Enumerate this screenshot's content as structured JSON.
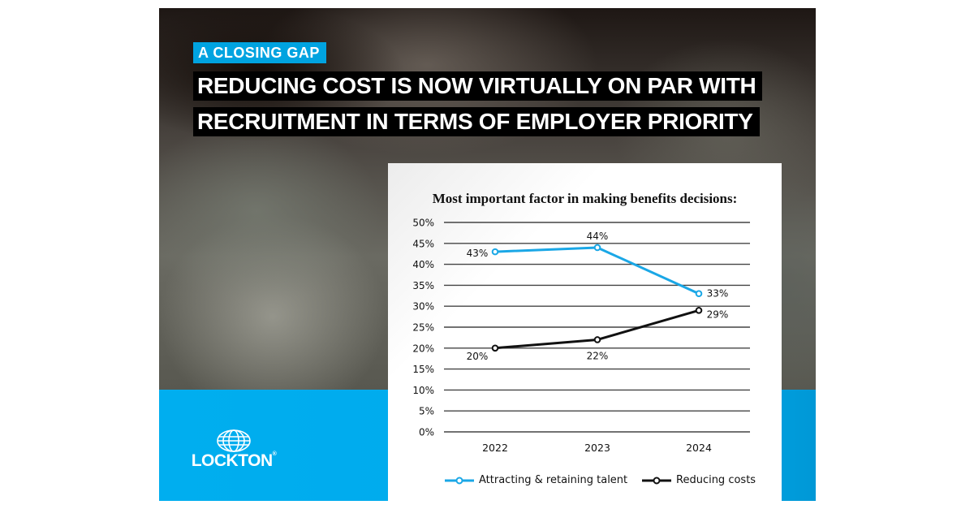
{
  "header": {
    "tag": "A CLOSING GAP",
    "headline_line1": "REDUCING COST IS NOW VIRTUALLY ON PAR WITH",
    "headline_line2": "RECRUITMENT IN TERMS OF EMPLOYER PRIORITY"
  },
  "brand": {
    "name": "LOCKTON",
    "registered": "®",
    "icon": "globe-icon",
    "colors": {
      "blue": "#00aeef",
      "black": "#000000",
      "white": "#ffffff"
    }
  },
  "chart_data": {
    "type": "line",
    "title": "Most important factor in making benefits decisions:",
    "xlabel": "",
    "ylabel": "",
    "categories": [
      "2022",
      "2023",
      "2024"
    ],
    "series": [
      {
        "name": "Attracting & retaining talent",
        "color": "#1aa7e6",
        "values": [
          43,
          44,
          33
        ],
        "labels": [
          "43%",
          "44%",
          "33%"
        ]
      },
      {
        "name": "Reducing costs",
        "color": "#111111",
        "values": [
          20,
          22,
          29
        ],
        "labels": [
          "20%",
          "22%",
          "29%"
        ]
      }
    ],
    "ylim": [
      0,
      50
    ],
    "yticks": [
      "0%",
      "5%",
      "10%",
      "15%",
      "20%",
      "25%",
      "30%",
      "35%",
      "40%",
      "45%",
      "50%"
    ],
    "grid": true,
    "legend_position": "bottom"
  }
}
